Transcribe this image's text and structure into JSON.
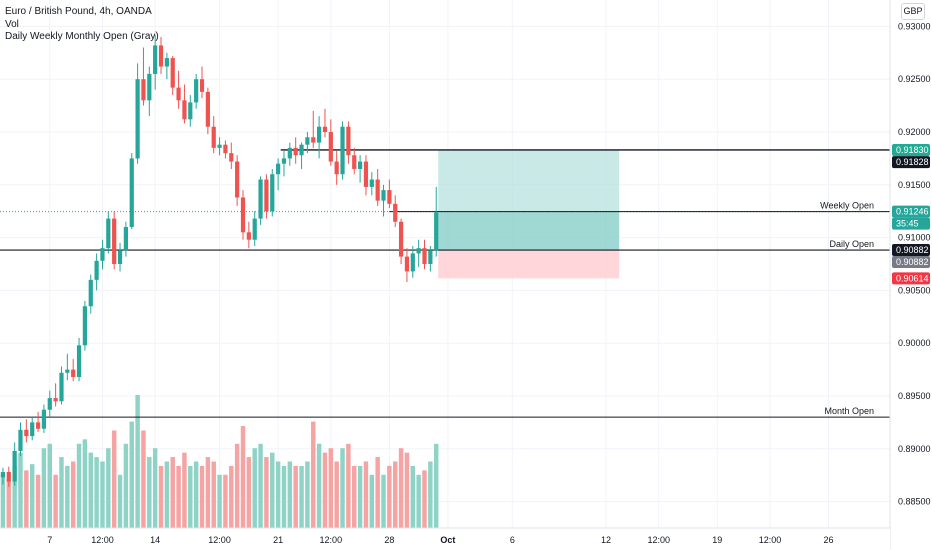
{
  "legend": {
    "symbol": "Euro / British Pound, 4h, OANDA",
    "volume": "Vol",
    "indicator": "Daily Weekly Monthly Open (Gray)"
  },
  "currency_button": "GBP",
  "colors": {
    "up": "#26a69a",
    "down": "#ef5350",
    "vol_up": "#8fd3c6",
    "vol_down": "#f5a3a3",
    "profit_zone": "#b2dfdb",
    "loss_zone": "#ffcdd2",
    "level_line": "#131722",
    "grid": "#f0f3fa"
  },
  "chart_data": {
    "type": "candlestick",
    "symbol": "EURGBP",
    "timeframe": "4h",
    "source": "OANDA",
    "ylim": [
      0.8825,
      0.9325
    ],
    "y_ticks": [
      "0.93000",
      "0.92500",
      "0.92000",
      "0.91500",
      "0.91000",
      "0.90500",
      "0.90000",
      "0.89500",
      "0.89000",
      "0.88500"
    ],
    "x_ticks": [
      {
        "label": "7",
        "bar": 8
      },
      {
        "label": "12:00",
        "bar": 17
      },
      {
        "label": "14",
        "bar": 26
      },
      {
        "label": "12:00",
        "bar": 37
      },
      {
        "label": "21",
        "bar": 47
      },
      {
        "label": "12:00",
        "bar": 56
      },
      {
        "label": "28",
        "bar": 66
      },
      {
        "label": "Oct",
        "bar": 76
      },
      {
        "label": "6",
        "bar": 87
      },
      {
        "label": "12",
        "bar": 103
      },
      {
        "label": "12:00",
        "bar": 112
      },
      {
        "label": "19",
        "bar": 122
      },
      {
        "label": "12:00",
        "bar": 131
      },
      {
        "label": "26",
        "bar": 141
      }
    ],
    "bar_count_visible": 152,
    "candles": [
      [
        0.8873,
        0.8882,
        0.8866,
        0.8878,
        60
      ],
      [
        0.8878,
        0.8883,
        0.8864,
        0.8869,
        55
      ],
      [
        0.8869,
        0.8906,
        0.8865,
        0.8898,
        70
      ],
      [
        0.8898,
        0.8925,
        0.8893,
        0.8918,
        85
      ],
      [
        0.8918,
        0.8928,
        0.8906,
        0.8912,
        65
      ],
      [
        0.8912,
        0.893,
        0.8908,
        0.8925,
        72
      ],
      [
        0.8925,
        0.8935,
        0.8916,
        0.8919,
        60
      ],
      [
        0.8919,
        0.8942,
        0.8915,
        0.8937,
        90
      ],
      [
        0.8937,
        0.8955,
        0.893,
        0.8948,
        95
      ],
      [
        0.8948,
        0.8962,
        0.894,
        0.8945,
        60
      ],
      [
        0.8945,
        0.8978,
        0.8942,
        0.8972,
        80
      ],
      [
        0.8972,
        0.899,
        0.8965,
        0.8975,
        70
      ],
      [
        0.8975,
        0.8985,
        0.8964,
        0.8968,
        75
      ],
      [
        0.8968,
        0.9005,
        0.8964,
        0.8998,
        95
      ],
      [
        0.8998,
        0.904,
        0.8993,
        0.9035,
        100
      ],
      [
        0.9035,
        0.9065,
        0.9028,
        0.906,
        85
      ],
      [
        0.906,
        0.9085,
        0.905,
        0.9078,
        80
      ],
      [
        0.9078,
        0.9098,
        0.907,
        0.909,
        75
      ],
      [
        0.909,
        0.9125,
        0.9085,
        0.9118,
        90
      ],
      [
        0.9118,
        0.9125,
        0.907,
        0.9075,
        110
      ],
      [
        0.9075,
        0.9095,
        0.9068,
        0.9088,
        60
      ],
      [
        0.9088,
        0.9115,
        0.9082,
        0.911,
        95
      ],
      [
        0.911,
        0.918,
        0.9108,
        0.9175,
        120
      ],
      [
        0.9175,
        0.9265,
        0.917,
        0.925,
        150
      ],
      [
        0.925,
        0.928,
        0.9225,
        0.923,
        110
      ],
      [
        0.923,
        0.9262,
        0.9215,
        0.9255,
        80
      ],
      [
        0.9255,
        0.9292,
        0.924,
        0.9282,
        90
      ],
      [
        0.9282,
        0.929,
        0.9255,
        0.9262,
        70
      ],
      [
        0.9262,
        0.9275,
        0.925,
        0.927,
        75
      ],
      [
        0.927,
        0.9272,
        0.9235,
        0.9242,
        80
      ],
      [
        0.9242,
        0.9258,
        0.9222,
        0.923,
        70
      ],
      [
        0.923,
        0.9245,
        0.9208,
        0.9212,
        85
      ],
      [
        0.9212,
        0.9235,
        0.9205,
        0.9228,
        70
      ],
      [
        0.9228,
        0.9255,
        0.9222,
        0.925,
        75
      ],
      [
        0.925,
        0.9262,
        0.9232,
        0.9238,
        70
      ],
      [
        0.9238,
        0.9242,
        0.9198,
        0.9205,
        80
      ],
      [
        0.9205,
        0.9215,
        0.918,
        0.9185,
        75
      ],
      [
        0.9185,
        0.9195,
        0.9178,
        0.9188,
        60
      ],
      [
        0.9188,
        0.9192,
        0.9175,
        0.918,
        60
      ],
      [
        0.918,
        0.919,
        0.9165,
        0.9172,
        70
      ],
      [
        0.9172,
        0.9178,
        0.913,
        0.9138,
        95
      ],
      [
        0.9138,
        0.9145,
        0.9098,
        0.9105,
        115
      ],
      [
        0.9105,
        0.9115,
        0.909,
        0.9098,
        80
      ],
      [
        0.9098,
        0.9125,
        0.9092,
        0.9118,
        90
      ],
      [
        0.9118,
        0.9158,
        0.9112,
        0.9155,
        95
      ],
      [
        0.9155,
        0.916,
        0.9118,
        0.9125,
        80
      ],
      [
        0.9125,
        0.9165,
        0.912,
        0.916,
        85
      ],
      [
        0.916,
        0.9175,
        0.9145,
        0.917,
        75
      ],
      [
        0.917,
        0.9182,
        0.9158,
        0.9175,
        70
      ],
      [
        0.9175,
        0.919,
        0.9168,
        0.9185,
        75
      ],
      [
        0.9185,
        0.9195,
        0.917,
        0.9178,
        70
      ],
      [
        0.9178,
        0.919,
        0.9165,
        0.9188,
        70
      ],
      [
        0.9188,
        0.92,
        0.918,
        0.9195,
        75
      ],
      [
        0.9195,
        0.922,
        0.9185,
        0.919,
        120
      ],
      [
        0.919,
        0.9215,
        0.9175,
        0.9205,
        95
      ],
      [
        0.9205,
        0.9222,
        0.9195,
        0.92,
        85
      ],
      [
        0.92,
        0.9212,
        0.9168,
        0.9172,
        90
      ],
      [
        0.9172,
        0.9182,
        0.915,
        0.916,
        75
      ],
      [
        0.916,
        0.921,
        0.9155,
        0.9205,
        90
      ],
      [
        0.9205,
        0.921,
        0.917,
        0.9178,
        95
      ],
      [
        0.9178,
        0.9185,
        0.916,
        0.9165,
        70
      ],
      [
        0.9165,
        0.9178,
        0.9152,
        0.9172,
        70
      ],
      [
        0.9172,
        0.9178,
        0.914,
        0.9148,
        75
      ],
      [
        0.9148,
        0.9162,
        0.914,
        0.9155,
        60
      ],
      [
        0.9155,
        0.9165,
        0.913,
        0.9135,
        80
      ],
      [
        0.9135,
        0.915,
        0.912,
        0.9145,
        60
      ],
      [
        0.9145,
        0.9155,
        0.9128,
        0.9132,
        70
      ],
      [
        0.9132,
        0.914,
        0.911,
        0.9115,
        75
      ],
      [
        0.9115,
        0.9118,
        0.9075,
        0.9082,
        90
      ],
      [
        0.9082,
        0.909,
        0.9058,
        0.9068,
        85
      ],
      [
        0.9068,
        0.9092,
        0.9062,
        0.9085,
        70
      ],
      [
        0.9085,
        0.9098,
        0.9072,
        0.909,
        60
      ],
      [
        0.909,
        0.9098,
        0.907,
        0.9075,
        65
      ],
      [
        0.9075,
        0.9092,
        0.9068,
        0.9088,
        75
      ],
      [
        0.9088,
        0.9148,
        0.9082,
        0.9124,
        95
      ]
    ]
  },
  "levels": [
    {
      "name": "Weekly Open",
      "price": 0.91246
    },
    {
      "name": "Daily Open",
      "price": 0.90882
    },
    {
      "name": "Month Open",
      "price": 0.893
    }
  ],
  "horizontal_lines": [
    0.9183
  ],
  "position": {
    "entry": 0.90882,
    "target": 0.9183,
    "stop": 0.90614
  },
  "price_tags": [
    {
      "text": "0.91830",
      "price": 0.9183,
      "bg": "#22ab94"
    },
    {
      "text": "0.91828",
      "price": 0.91828,
      "bg": "#131722"
    },
    {
      "text": "0.91246",
      "price": 0.91246,
      "bg": "#26a69a"
    },
    {
      "text": "35:45",
      "price": 0.91246,
      "bg": "#26a69a",
      "under": true
    },
    {
      "text": "0.90882",
      "price": 0.90882,
      "bg": "#131722"
    },
    {
      "text": "0.90882",
      "price": 0.90882,
      "bg": "#787b86",
      "below": true
    },
    {
      "text": "0.90614",
      "price": 0.90614,
      "bg": "#f23645"
    }
  ]
}
